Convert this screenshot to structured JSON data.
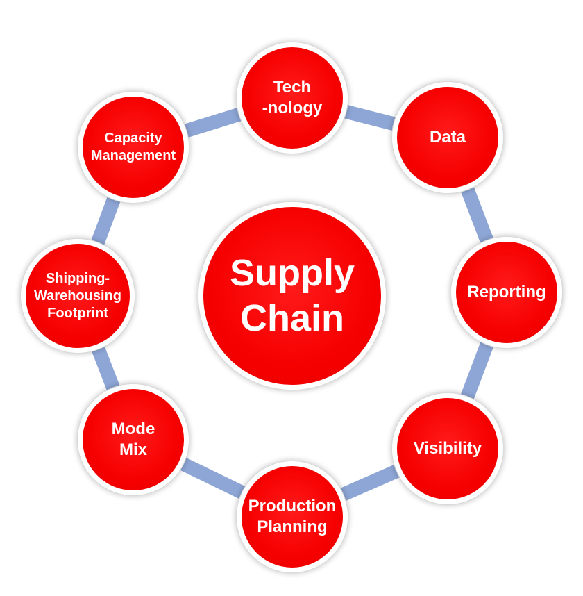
{
  "center": {
    "line1": "Supply",
    "line2": "Chain"
  },
  "nodes": {
    "technology": {
      "line1": "Tech",
      "line2": "-nology"
    },
    "data": {
      "line1": "Data"
    },
    "reporting": {
      "line1": "Reporting"
    },
    "visibility": {
      "line1": "Visibility"
    },
    "production_planning": {
      "line1": "Production",
      "line2": "Planning"
    },
    "mode_mix": {
      "line1": "Mode",
      "line2": "Mix"
    },
    "shipping_warehousing": {
      "line1": "Shipping-",
      "line2": "Warehousing",
      "line3": "Footprint"
    },
    "capacity_management": {
      "line1": "Capacity",
      "line2": "Management"
    }
  },
  "colors": {
    "node_fill": "#f60000",
    "node_border": "#ffffff",
    "ring": "#8ea6d6",
    "text": "#ffffff"
  }
}
